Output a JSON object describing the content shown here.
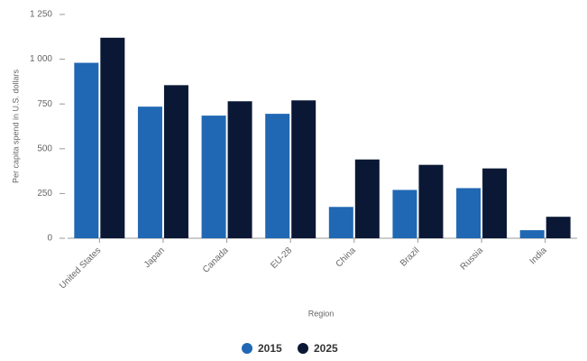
{
  "chart_data": {
    "type": "bar",
    "categories": [
      "United States",
      "Japan",
      "Canada",
      "EU-28",
      "China",
      "Brazil",
      "Russia",
      "India"
    ],
    "series": [
      {
        "name": "2015",
        "color": "#2068b3",
        "values": [
          980,
          735,
          685,
          695,
          175,
          270,
          280,
          45
        ]
      },
      {
        "name": "2025",
        "color": "#0b1835",
        "values": [
          1120,
          855,
          765,
          770,
          440,
          410,
          390,
          120
        ]
      }
    ],
    "ylim": [
      0,
      1250
    ],
    "yticks": [
      0,
      250,
      500,
      750,
      {
        "value": 1000,
        "label": "1 000"
      },
      {
        "value": 1250,
        "label": "1 250"
      }
    ],
    "y_label": "Per capita spend in U.S. dollars",
    "x_label": "Region",
    "grid": false,
    "legend": "bottom"
  }
}
